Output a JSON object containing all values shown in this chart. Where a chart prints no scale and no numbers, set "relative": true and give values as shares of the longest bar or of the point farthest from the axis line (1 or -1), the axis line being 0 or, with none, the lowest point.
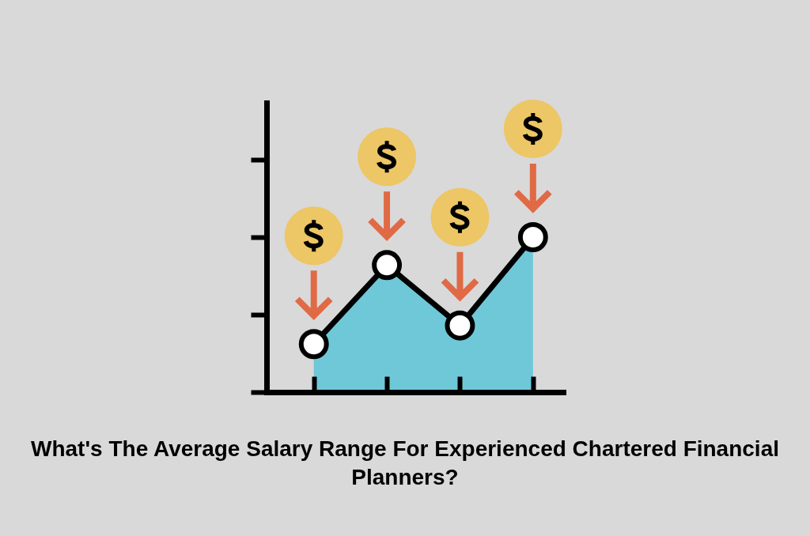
{
  "chart_data": {
    "type": "area",
    "title": "What's The Average Salary Range For Experienced Chartered Financial Planners?",
    "categories": [
      null,
      null,
      null,
      null
    ],
    "relative": true,
    "series": [
      {
        "color": "#6ec8d8",
        "values": [
          0.31,
          0.82,
          0.43,
          1
        ]
      }
    ],
    "marker": "circle",
    "line_style": "solid"
  }
}
